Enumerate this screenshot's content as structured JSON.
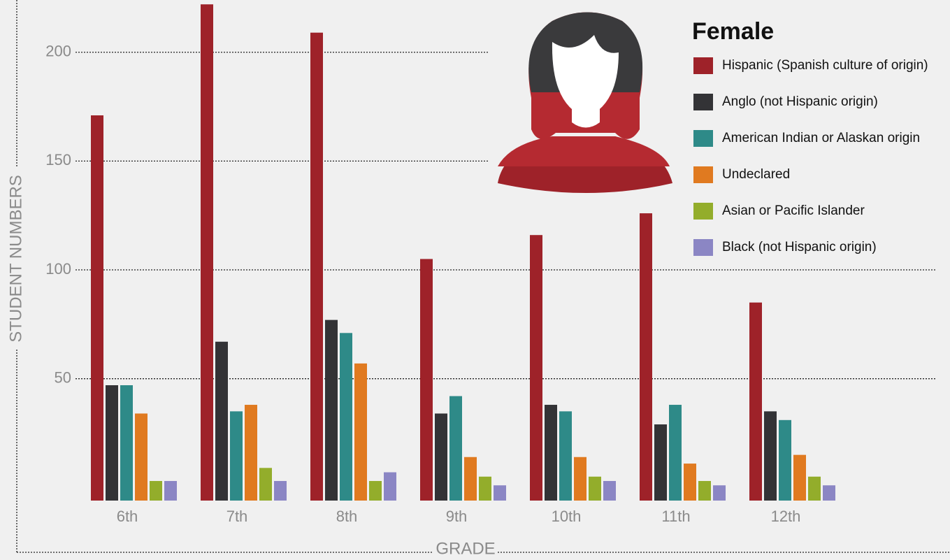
{
  "chart_data": {
    "type": "bar",
    "legend_title": "Female",
    "xlabel": "GRADE",
    "ylabel": "STUDENT NUMBERS",
    "categories": [
      "6th",
      "7th",
      "8th",
      "9th",
      "10th",
      "11th",
      "12th"
    ],
    "series": [
      {
        "name": "Hispanic (Spanish culture of origin)",
        "color": "#9e2229",
        "values": [
          171,
          222,
          209,
          105,
          116,
          126,
          85
        ]
      },
      {
        "name": "Anglo (not Hispanic origin)",
        "color": "#333336",
        "values": [
          47,
          67,
          77,
          34,
          38,
          29,
          35
        ]
      },
      {
        "name": "American Indian or Alaskan origin",
        "color": "#2e8a88",
        "values": [
          47,
          35,
          71,
          42,
          35,
          38,
          31
        ]
      },
      {
        "name": "Undeclared",
        "color": "#e07a20",
        "values": [
          34,
          38,
          57,
          14,
          14,
          11,
          15
        ]
      },
      {
        "name": "Asian or Pacific Islander",
        "color": "#93ad2b",
        "values": [
          3,
          9,
          3,
          5,
          5,
          3,
          5
        ]
      },
      {
        "name": "Black (not Hispanic origin)",
        "color": "#8b86c4",
        "values": [
          3,
          3,
          7,
          1,
          3,
          1,
          1
        ]
      }
    ],
    "ylim": [
      -6,
      224
    ],
    "yticks": [
      50,
      100,
      150,
      200
    ],
    "grid": true,
    "legend": "top-right"
  }
}
